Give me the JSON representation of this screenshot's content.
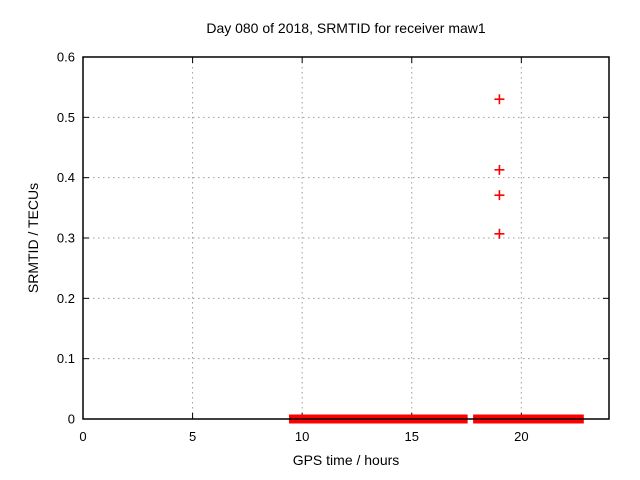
{
  "header": {
    "title": "Day 080 of 2018, SRMTID for receiver maw1"
  },
  "chart_data": {
    "type": "scatter",
    "title": "Day 080 of 2018, SRMTID for receiver maw1",
    "xlabel": "GPS time / hours",
    "ylabel": "SRMTID / TECUs",
    "xlim": [
      0,
      24
    ],
    "ylim": [
      0,
      0.6
    ],
    "xticks": [
      0,
      5,
      10,
      15,
      20
    ],
    "yticks": [
      0,
      0.1,
      0.2,
      0.3,
      0.4,
      0.5,
      0.6
    ],
    "grid": true,
    "legend": "none",
    "marker": "plus",
    "marker_color": "#ff0000",
    "series": [
      {
        "name": "SRMTID near-zero dense band",
        "style": "contiguous plus markers at y ≈ 0 forming a solid red bar",
        "band_y": 0.0,
        "segments_x": [
          [
            9.4,
            17.55
          ],
          [
            17.8,
            22.85
          ]
        ]
      },
      {
        "name": "SRMTID outliers",
        "points": [
          [
            19.0,
            0.53
          ],
          [
            19.0,
            0.413
          ],
          [
            19.0,
            0.371
          ],
          [
            19.0,
            0.307
          ]
        ]
      }
    ]
  },
  "colors": {
    "marker": "#ff0000",
    "grid": "#9e9e9e",
    "frame": "#000000",
    "text": "#000000",
    "background": "#ffffff"
  }
}
